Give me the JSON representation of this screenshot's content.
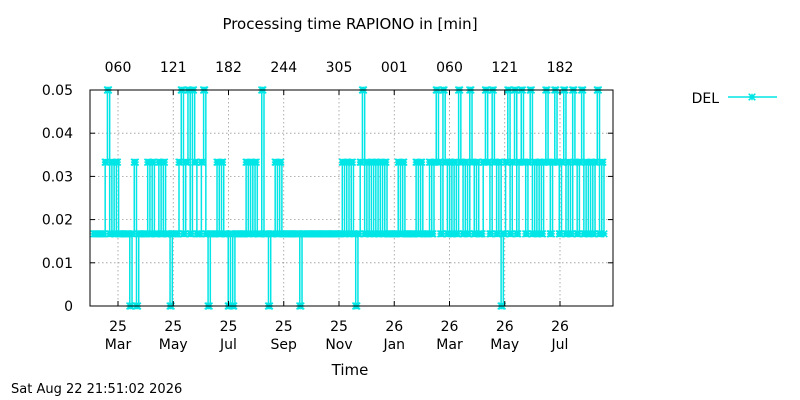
{
  "chart_data": {
    "type": "line",
    "title": "Processing time RAPIONO in [min]",
    "xlabel": "Time",
    "ylabel": "",
    "ylim": [
      0,
      0.05
    ],
    "yticks": [
      "0",
      "0.01",
      "0.02",
      "0.03",
      "0.04",
      "0.05"
    ],
    "xticks_bottom": [
      {
        "day": "25",
        "month": "Mar"
      },
      {
        "day": "25",
        "month": "May"
      },
      {
        "day": "25",
        "month": "Jul"
      },
      {
        "day": "25",
        "month": "Sep"
      },
      {
        "day": "25",
        "month": "Nov"
      },
      {
        "day": "26",
        "month": "Jan"
      },
      {
        "day": "26",
        "month": "Mar"
      },
      {
        "day": "26",
        "month": "May"
      },
      {
        "day": "26",
        "month": "Jul"
      }
    ],
    "xticks_top": [
      "060",
      "121",
      "182",
      "244",
      "305",
      "001",
      "060",
      "121",
      "182"
    ],
    "grid": true,
    "legend_position": "top-right",
    "series": [
      {
        "name": "DEL",
        "color": "#00e5e5",
        "marker": "star",
        "x_range": [
          "2025-02-10",
          "2026-08-22"
        ],
        "levels": [
          0,
          0.0167,
          0.0333,
          0.05
        ],
        "y": [
          0.0167,
          0.0167,
          0.0167,
          0.0167,
          0.0167,
          0.0333,
          0.05,
          0.0167,
          0.0333,
          0.0167,
          0.0333,
          0.0167,
          0.0167,
          0.0167,
          0.0167,
          0.0167,
          0.0,
          0.0167,
          0.0333,
          0.0,
          0.0167,
          0.0167,
          0.0167,
          0.0167,
          0.0333,
          0.0167,
          0.0333,
          0.0167,
          0.0167,
          0.0333,
          0.0167,
          0.0333,
          0.0167,
          0.0167,
          0.0,
          0.0167,
          0.0167,
          0.0167,
          0.0333,
          0.05,
          0.0167,
          0.0333,
          0.05,
          0.0167,
          0.05,
          0.0333,
          0.0167,
          0.0167,
          0.0333,
          0.05,
          0.0167,
          0.0,
          0.0167,
          0.0167,
          0.0167,
          0.0333,
          0.0167,
          0.0333,
          0.0167,
          0.0167,
          0.0,
          0.0167,
          0.0,
          0.0167,
          0.0167,
          0.0167,
          0.0167,
          0.0167,
          0.0333,
          0.0167,
          0.0333,
          0.0167,
          0.0333,
          0.0167,
          0.0167,
          0.05,
          0.0167,
          0.0167,
          0.0,
          0.0167,
          0.0167,
          0.0333,
          0.0167,
          0.0333,
          0.0167,
          0.0167,
          0.0167,
          0.0167,
          0.0167,
          0.0167,
          0.0167,
          0.0167,
          0.0,
          0.0167,
          0.0167,
          0.0167,
          0.0167,
          0.0167,
          0.0167,
          0.0167,
          0.0167,
          0.0167,
          0.0167,
          0.0167,
          0.0167,
          0.0167,
          0.0167,
          0.0167,
          0.0167,
          0.0167,
          0.0167,
          0.0333,
          0.0167,
          0.0333,
          0.0167,
          0.0333,
          0.0167,
          0.0,
          0.0167,
          0.0333,
          0.05,
          0.0167,
          0.0333,
          0.0167,
          0.0333,
          0.0167,
          0.0333,
          0.0167,
          0.0333,
          0.0167,
          0.0333,
          0.0167,
          0.0167,
          0.0167,
          0.0167,
          0.0167,
          0.0333,
          0.0167,
          0.0333,
          0.0167,
          0.0167,
          0.0167,
          0.0167,
          0.0167,
          0.0333,
          0.0167,
          0.0333,
          0.0167,
          0.0167,
          0.0167,
          0.0333,
          0.0167,
          0.0333,
          0.05,
          0.0333,
          0.0167,
          0.05,
          0.0333,
          0.0167,
          0.0333,
          0.0167,
          0.0333,
          0.0167,
          0.05,
          0.0333,
          0.0167,
          0.0333,
          0.0167,
          0.05,
          0.0333,
          0.0167,
          0.0333,
          0.0167,
          0.0167,
          0.0333,
          0.05,
          0.0333,
          0.0167,
          0.05,
          0.0333,
          0.0167,
          0.0333,
          0.0,
          0.0167,
          0.0333,
          0.05,
          0.0167,
          0.0333,
          0.05,
          0.0167,
          0.0333,
          0.05,
          0.0333,
          0.0167,
          0.0333,
          0.05,
          0.0167,
          0.0333,
          0.0167,
          0.0333,
          0.0167,
          0.0333,
          0.05,
          0.0333,
          0.0167,
          0.0333,
          0.05,
          0.0333,
          0.0167,
          0.0333,
          0.05,
          0.0167,
          0.0333,
          0.0167,
          0.05,
          0.0333,
          0.0167,
          0.0333,
          0.05,
          0.0167,
          0.0333,
          0.0167,
          0.0333,
          0.0167,
          0.0333,
          0.05,
          0.0167,
          0.0333,
          0.0167
        ]
      }
    ]
  },
  "footer": {
    "timestamp": "Sat Aug 22 21:51:02 2026"
  }
}
